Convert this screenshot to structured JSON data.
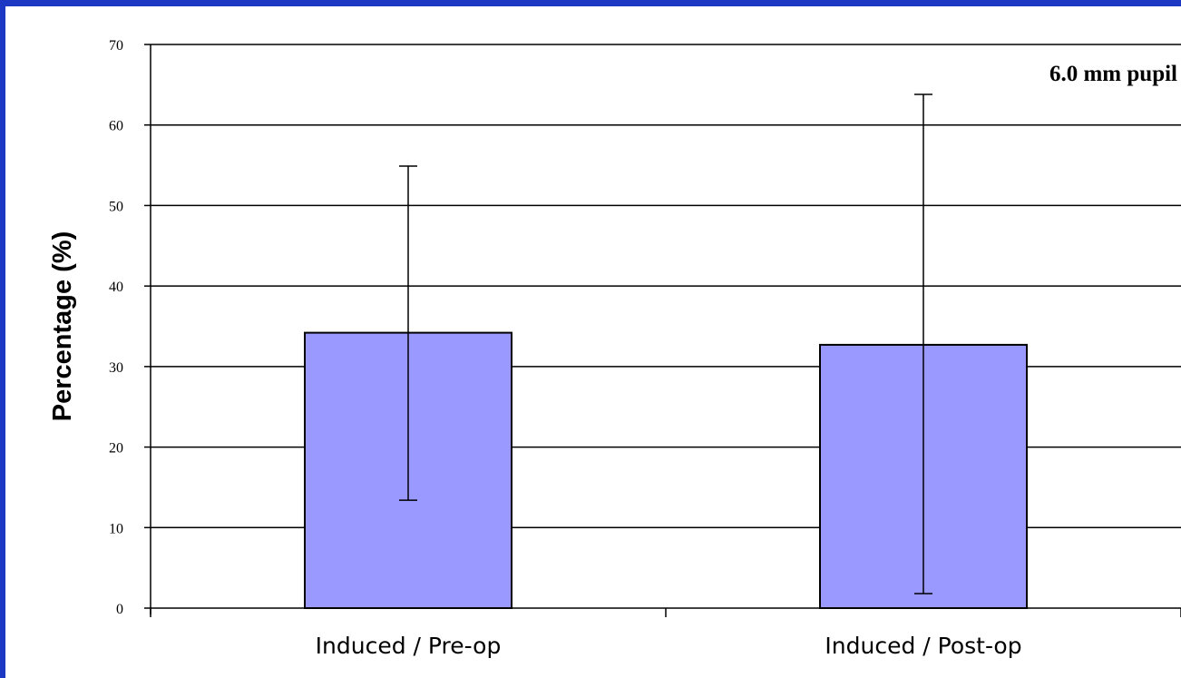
{
  "colors": {
    "background_border": "#1d39c4",
    "plot_background": "#ffffff",
    "bar_fill": "#9999ff",
    "bar_stroke": "#000000",
    "grid": "#000000"
  },
  "chart_data": {
    "type": "bar",
    "title": "",
    "annotation": "6.0 mm pupil",
    "ylabel": "Percentage (%)",
    "xlabel": "",
    "ylim": [
      0,
      70
    ],
    "yticks": [
      0,
      10,
      20,
      30,
      40,
      50,
      60,
      70
    ],
    "grid": true,
    "categories": [
      "Induced / Pre-op",
      "Induced / Post-op"
    ],
    "values": [
      34.2,
      32.7
    ],
    "error_low": [
      13.4,
      1.8
    ],
    "error_high": [
      54.9,
      63.8
    ]
  }
}
